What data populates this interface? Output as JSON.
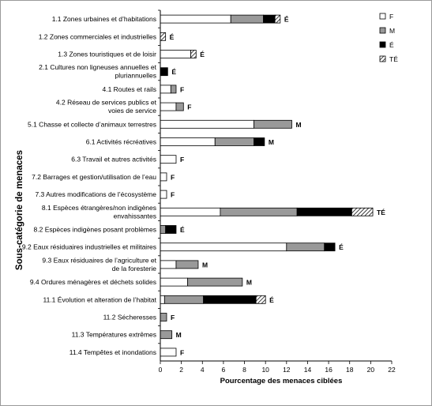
{
  "chart_data": {
    "type": "bar",
    "orientation": "horizontal",
    "stacked": true,
    "xlabel": "Pourcentage des menaces ciblées",
    "ylabel": "Sous-catégorie de menaces",
    "xlim": [
      0,
      22
    ],
    "xticks": [
      "0",
      "2",
      "4",
      "6",
      "8",
      "10",
      "12",
      "14",
      "16",
      "18",
      "20",
      "22"
    ],
    "grid": false,
    "legend_position": "top-right",
    "categories": [
      [
        "1.1 Zones urbaines et d’habitations"
      ],
      [
        "1.2 Zones commerciales et industrielles"
      ],
      [
        "1.3 Zones touristiques et de loisir"
      ],
      [
        "2.1 Cultures non ligneuses annuelles et",
        "pluriannuelles"
      ],
      [
        "4.1 Routes et rails"
      ],
      [
        "4.2 Réseau de services publics et",
        "voies de service"
      ],
      [
        "5.1 Chasse et collecte d’animaux terrestres"
      ],
      [
        "6.1 Activités récréatives"
      ],
      [
        "6.3 Travail et autres activités"
      ],
      [
        "7.2 Barrages et gestion/utilisation de l’eau"
      ],
      [
        "7.3 Autres modifications de l’écosystème"
      ],
      [
        "8.1 Espèces étrangères/non indigènes",
        "envahissantes"
      ],
      [
        "8.2 Espèces indigènes posant problèmes"
      ],
      [
        "9.2 Eaux résiduaires industrielles et militaires"
      ],
      [
        "9.3 Eaux résiduaires de l’agriculture et",
        "de la foresterie"
      ],
      [
        "9.4 Ordures ménagères et déchets solides"
      ],
      [
        "11.1 Évolution et alteration de l’habitat"
      ],
      [
        "11.2 Sécheresses"
      ],
      [
        "11.3 Températures extrêmes"
      ],
      [
        "11.4 Tempêtes et inondations"
      ]
    ],
    "series": [
      {
        "name": "F",
        "color": "#ffffff",
        "pattern": "none",
        "values": [
          6.7,
          0,
          2.9,
          0,
          1.0,
          1.5,
          8.9,
          5.2,
          1.5,
          0.6,
          0.6,
          5.7,
          0,
          12.0,
          1.5,
          2.6,
          0.4,
          0,
          0,
          1.5
        ]
      },
      {
        "name": "M",
        "color": "#999999",
        "pattern": "none",
        "values": [
          3.1,
          0,
          0,
          0,
          0.5,
          0.7,
          3.6,
          3.7,
          0,
          0,
          0,
          7.3,
          0.5,
          3.6,
          2.1,
          5.2,
          3.7,
          0.6,
          1.1,
          0
        ]
      },
      {
        "name": "É",
        "color": "#000000",
        "pattern": "none",
        "values": [
          1.1,
          0,
          0,
          0.7,
          0,
          0,
          0,
          1.0,
          0,
          0,
          0,
          5.2,
          1.0,
          1.0,
          0,
          0,
          5.0,
          0,
          0,
          0
        ]
      },
      {
        "name": "TÉ",
        "color": "#ffffff",
        "pattern": "diagonal-hatch",
        "values": [
          0.5,
          0.5,
          0.5,
          0,
          0,
          0,
          0,
          0,
          0,
          0,
          0,
          2.0,
          0,
          0,
          0,
          0,
          0.9,
          0,
          0,
          0
        ]
      }
    ],
    "bar_labels": [
      "É",
      "É",
      "É",
      "É",
      "F",
      "F",
      "M",
      "M",
      "F",
      "F",
      "F",
      "TÉ",
      "É",
      "É",
      "M",
      "M",
      "É",
      "F",
      "M",
      "F"
    ]
  }
}
